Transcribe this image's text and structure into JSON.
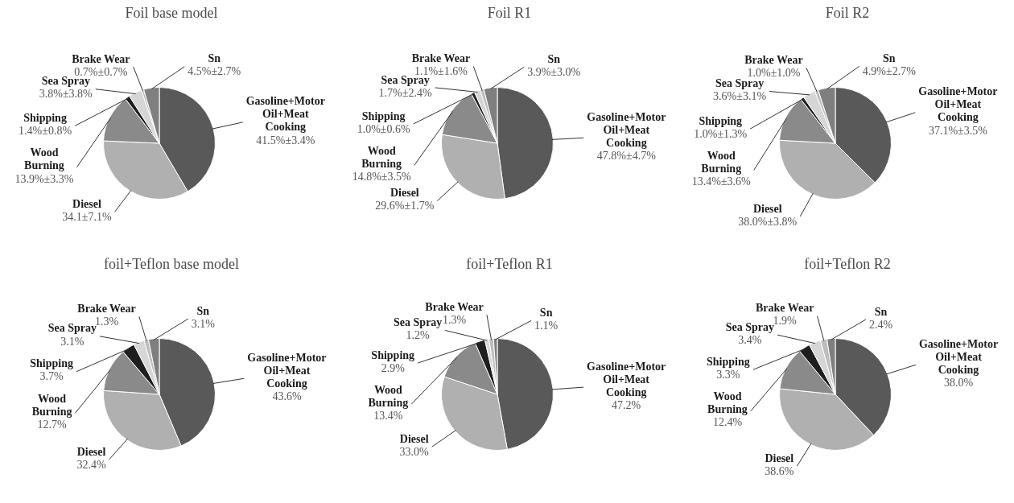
{
  "chart_data": [
    {
      "type": "pie",
      "title": "Foil base model",
      "categories": [
        "Gasoline+Motor Oil+Meat Cooking",
        "Diesel",
        "Wood Burning",
        "Shipping",
        "Sea Spray",
        "Brake Wear",
        "Sn"
      ],
      "values": [
        41.5,
        34.1,
        13.9,
        1.4,
        3.8,
        0.7,
        4.5
      ],
      "value_labels": [
        "41.5%±3.4%",
        "34.1±7.1%",
        "13.9%±3.3%",
        "1.4%±0.8%",
        "3.8%±3.8%",
        "0.7%±0.7%",
        "4.5%±2.7%"
      ],
      "colors": [
        "#595959",
        "#b0b0b0",
        "#8a8a8a",
        "#1e1e1e",
        "#d6d6d6",
        "#bdbdbd",
        "#7f7f7f"
      ]
    },
    {
      "type": "pie",
      "title": "Foil R1",
      "categories": [
        "Gasoline+Motor Oil+Meat Cooking",
        "Diesel",
        "Wood Burning",
        "Shipping",
        "Sea Spray",
        "Brake Wear",
        "Sn"
      ],
      "values": [
        47.8,
        29.6,
        14.8,
        1.0,
        1.7,
        1.1,
        3.9
      ],
      "value_labels": [
        "47.8%±4.7%",
        "29.6%±1.7%",
        "14.8%±3.5%",
        "1.0%±0.6%",
        "1.7%±2.4%",
        "1.1%±1.6%",
        "3.9%±3.0%"
      ],
      "colors": [
        "#595959",
        "#b0b0b0",
        "#8a8a8a",
        "#1e1e1e",
        "#d6d6d6",
        "#bdbdbd",
        "#7f7f7f"
      ]
    },
    {
      "type": "pie",
      "title": "Foil R2",
      "categories": [
        "Gasoline+Motor Oil+Meat Cooking",
        "Diesel",
        "Wood Burning",
        "Shipping",
        "Sea Spray",
        "Brake Wear",
        "Sn"
      ],
      "values": [
        37.1,
        38.0,
        13.4,
        1.0,
        3.6,
        1.0,
        4.9
      ],
      "value_labels": [
        "37.1%±3.5%",
        "38.0%±3.8%",
        "13.4%±3.6%",
        "1.0%±1.3%",
        "3.6%±3.1%",
        "1.0%±1.0%",
        "4.9%±2.7%"
      ],
      "colors": [
        "#595959",
        "#b0b0b0",
        "#8a8a8a",
        "#1e1e1e",
        "#d6d6d6",
        "#bdbdbd",
        "#7f7f7f"
      ]
    },
    {
      "type": "pie",
      "title": "foil+Teflon base model",
      "categories": [
        "Gasoline+Motor Oil+Meat Cooking",
        "Diesel",
        "Wood Burning",
        "Shipping",
        "Sea Spray",
        "Brake Wear",
        "Sn"
      ],
      "values": [
        43.6,
        32.4,
        12.7,
        3.7,
        3.1,
        1.3,
        3.1
      ],
      "value_labels": [
        "43.6%",
        "32.4%",
        "12.7%",
        "3.7%",
        "3.1%",
        "1.3%",
        "3.1%"
      ],
      "colors": [
        "#595959",
        "#b0b0b0",
        "#8a8a8a",
        "#1e1e1e",
        "#d6d6d6",
        "#bdbdbd",
        "#7f7f7f"
      ]
    },
    {
      "type": "pie",
      "title": "foil+Teflon R1",
      "categories": [
        "Gasoline+Motor Oil+Meat Cooking",
        "Diesel",
        "Wood Burning",
        "Shipping",
        "Sea Spray",
        "Brake Wear",
        "Sn"
      ],
      "values": [
        47.2,
        33.0,
        13.4,
        2.9,
        1.2,
        1.3,
        1.1
      ],
      "value_labels": [
        "47.2%",
        "33.0%",
        "13.4%",
        "2.9%",
        "1.2%",
        "1.3%",
        "1.1%"
      ],
      "colors": [
        "#595959",
        "#b0b0b0",
        "#8a8a8a",
        "#1e1e1e",
        "#d6d6d6",
        "#bdbdbd",
        "#7f7f7f"
      ]
    },
    {
      "type": "pie",
      "title": "foil+Teflon R2",
      "categories": [
        "Gasoline+Motor Oil+Meat Cooking",
        "Diesel",
        "Wood Burning",
        "Shipping",
        "Sea Spray",
        "Brake Wear",
        "Sn"
      ],
      "values": [
        38.0,
        38.6,
        12.4,
        3.3,
        3.4,
        1.9,
        2.4
      ],
      "value_labels": [
        "38.0%",
        "38.6%",
        "12.4%",
        "3.3%",
        "3.4%",
        "1.9%",
        "2.4%"
      ],
      "colors": [
        "#595959",
        "#b0b0b0",
        "#8a8a8a",
        "#1e1e1e",
        "#d6d6d6",
        "#bdbdbd",
        "#7f7f7f"
      ]
    }
  ]
}
